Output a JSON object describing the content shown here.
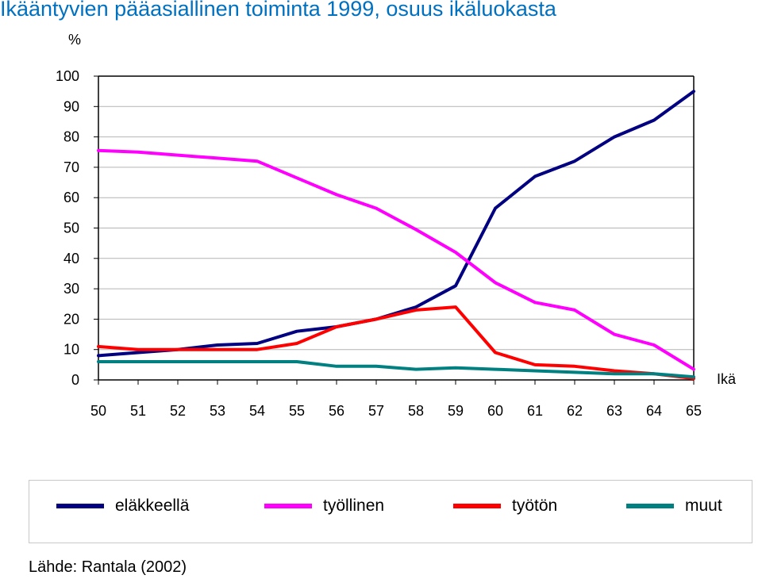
{
  "title": "Ikääntyvien pääasiallinen toiminta 1999, osuus ikäluokasta",
  "source": "Lähde: Rantala (2002)",
  "chart_data": {
    "type": "line",
    "ylabel": "%",
    "xlabel": "Ikä",
    "x": [
      50,
      51,
      52,
      53,
      54,
      55,
      56,
      57,
      58,
      59,
      60,
      61,
      62,
      63,
      64,
      65
    ],
    "ylim": [
      0,
      100
    ],
    "yticks": [
      0,
      10,
      20,
      30,
      40,
      50,
      60,
      70,
      80,
      90,
      100
    ],
    "grid": true,
    "legend_position": "bottom",
    "series": [
      {
        "name": "eläkkeellä",
        "color": "#000080",
        "values": [
          8,
          9,
          10,
          11.5,
          12,
          16,
          17.5,
          20,
          24,
          31,
          56.5,
          67,
          72,
          80,
          85.5,
          95
        ]
      },
      {
        "name": "työllinen",
        "color": "#FF00FF",
        "values": [
          75.5,
          75,
          74,
          73,
          72,
          66.5,
          61,
          56.5,
          49.5,
          42,
          32,
          25.5,
          23,
          15,
          11.5,
          3.5
        ]
      },
      {
        "name": "työtön",
        "color": "#FF0000",
        "values": [
          11,
          10,
          10,
          10,
          10,
          12,
          17.5,
          20,
          23,
          24,
          9,
          5,
          4.5,
          3,
          2,
          0.5
        ]
      },
      {
        "name": "muut",
        "color": "#008080",
        "values": [
          6,
          6,
          6,
          6,
          6,
          6,
          4.5,
          4.5,
          3.5,
          4,
          3.5,
          3,
          2.5,
          2,
          2,
          1
        ]
      }
    ]
  }
}
